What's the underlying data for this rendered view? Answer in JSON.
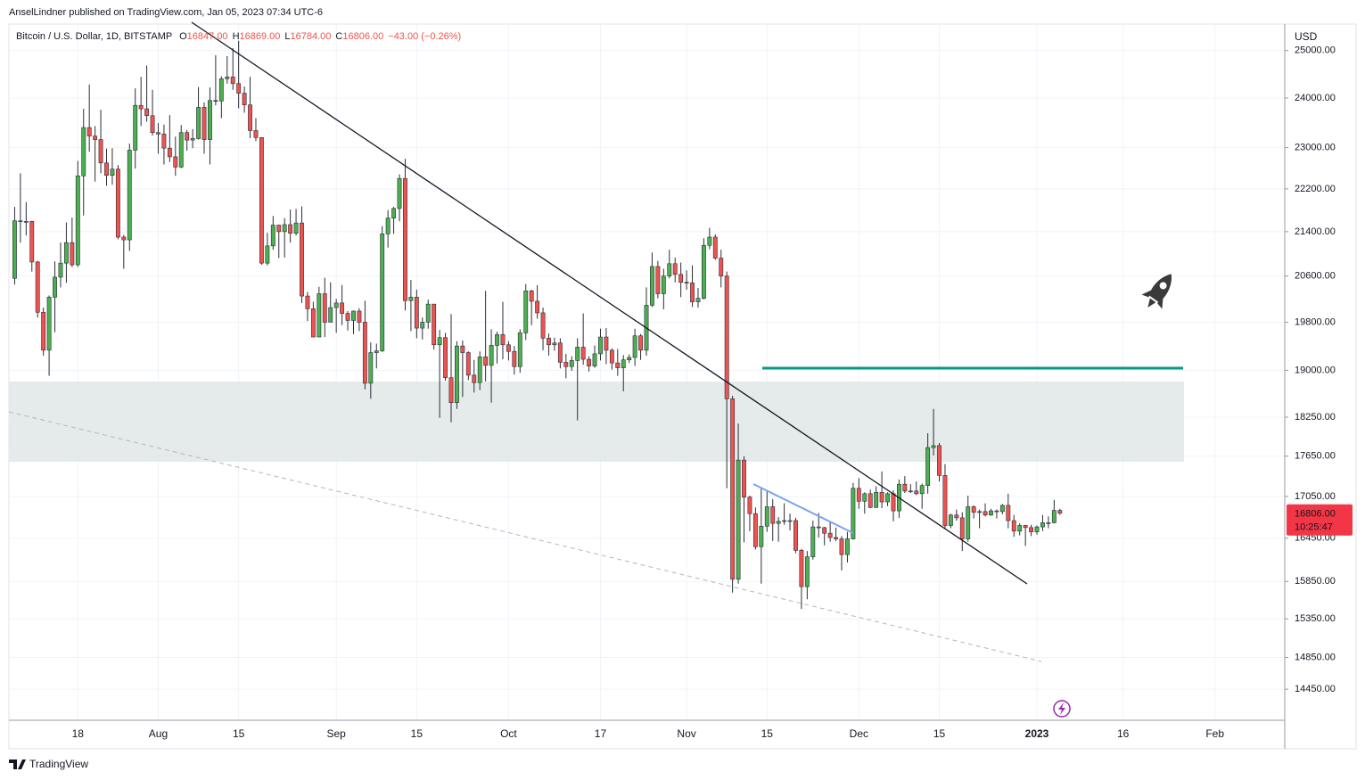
{
  "header": {
    "publisher": "AnselLindner published on TradingView.com, Jan 05, 2023 07:34 UTC-6"
  },
  "chart_data": {
    "type": "candlestick",
    "legend": {
      "symbol": "Bitcoin / U.S. Dollar, 1D, BITSTAMP",
      "fields": [
        {
          "key": "O",
          "value": "16847.00"
        },
        {
          "key": "H",
          "value": "16869.00"
        },
        {
          "key": "L",
          "value": "16784.00"
        },
        {
          "key": "C",
          "value": "16806.00"
        }
      ],
      "change": "−43.00 (−0.26%)"
    },
    "currency": "USD",
    "last_price": {
      "value": 16806,
      "label": "16806.00"
    },
    "countdown": "10:25:47",
    "up_color": "#4caf50",
    "down_color": "#ef5350",
    "last_price_color": "#f23645",
    "log_scale": true,
    "grid": true,
    "xlim": [
      "Jul 6",
      "Feb 13"
    ],
    "xticks": [
      {
        "value": "Jul 18",
        "label": "18"
      },
      {
        "value": "Aug 1",
        "label": "Aug"
      },
      {
        "value": "Aug 15",
        "label": "15"
      },
      {
        "value": "Sep 1",
        "label": "Sep"
      },
      {
        "value": "Sep 15",
        "label": "15"
      },
      {
        "value": "Oct 1",
        "label": "Oct"
      },
      {
        "value": "Oct 17",
        "label": "17"
      },
      {
        "value": "Nov 1",
        "label": "Nov"
      },
      {
        "value": "Nov 15",
        "label": "15"
      },
      {
        "value": "Dec 1",
        "label": "Dec"
      },
      {
        "value": "Dec 15",
        "label": "15"
      },
      {
        "value": "Jan 1",
        "label": "2023"
      },
      {
        "value": "Jan 16",
        "label": "16"
      },
      {
        "value": "Feb 1",
        "label": "Feb"
      }
    ],
    "ylim": [
      14070,
      25515
    ],
    "yticks": [
      {
        "value": 25000,
        "label": "25000.00"
      },
      {
        "value": 24000,
        "label": "24000.00"
      },
      {
        "value": 23000,
        "label": "23000.00"
      },
      {
        "value": 22200,
        "label": "22200.00"
      },
      {
        "value": 21400,
        "label": "21400.00"
      },
      {
        "value": 20600,
        "label": "20600.00"
      },
      {
        "value": 19800,
        "label": "19800.00"
      },
      {
        "value": 19000,
        "label": "19000.00"
      },
      {
        "value": 18250,
        "label": "18250.00"
      },
      {
        "value": 17650,
        "label": "17650.00"
      },
      {
        "value": 17050,
        "label": "17050.00"
      },
      {
        "value": 16450,
        "label": "16450.00"
      },
      {
        "value": 15850,
        "label": "15850.00"
      },
      {
        "value": 15350,
        "label": "15350.00"
      },
      {
        "value": 14850,
        "label": "14850.00"
      },
      {
        "value": 14450,
        "label": "14450.00"
      }
    ],
    "x": [
      "Jul 7",
      "Jul 8",
      "Jul 9",
      "Jul 10",
      "Jul 11",
      "Jul 12",
      "Jul 13",
      "Jul 14",
      "Jul 15",
      "Jul 16",
      "Jul 17",
      "Jul 18",
      "Jul 19",
      "Jul 20",
      "Jul 21",
      "Jul 22",
      "Jul 23",
      "Jul 24",
      "Jul 25",
      "Jul 26",
      "Jul 27",
      "Jul 28",
      "Jul 29",
      "Jul 30",
      "Jul 31",
      "Aug 1",
      "Aug 2",
      "Aug 3",
      "Aug 4",
      "Aug 5",
      "Aug 6",
      "Aug 7",
      "Aug 8",
      "Aug 9",
      "Aug 10",
      "Aug 11",
      "Aug 12",
      "Aug 13",
      "Aug 14",
      "Aug 15",
      "Aug 16",
      "Aug 17",
      "Aug 18",
      "Aug 19",
      "Aug 20",
      "Aug 21",
      "Aug 22",
      "Aug 23",
      "Aug 24",
      "Aug 25",
      "Aug 26",
      "Aug 27",
      "Aug 28",
      "Aug 29",
      "Aug 30",
      "Aug 31",
      "Sep 1",
      "Sep 2",
      "Sep 3",
      "Sep 4",
      "Sep 5",
      "Sep 6",
      "Sep 7",
      "Sep 8",
      "Sep 9",
      "Sep 10",
      "Sep 11",
      "Sep 12",
      "Sep 13",
      "Sep 14",
      "Sep 15",
      "Sep 16",
      "Sep 17",
      "Sep 18",
      "Sep 19",
      "Sep 20",
      "Sep 21",
      "Sep 22",
      "Sep 23",
      "Sep 24",
      "Sep 25",
      "Sep 26",
      "Sep 27",
      "Sep 28",
      "Sep 29",
      "Sep 30",
      "Oct 1",
      "Oct 2",
      "Oct 3",
      "Oct 4",
      "Oct 5",
      "Oct 6",
      "Oct 7",
      "Oct 8",
      "Oct 9",
      "Oct 10",
      "Oct 11",
      "Oct 12",
      "Oct 13",
      "Oct 14",
      "Oct 15",
      "Oct 16",
      "Oct 17",
      "Oct 18",
      "Oct 19",
      "Oct 20",
      "Oct 21",
      "Oct 22",
      "Oct 23",
      "Oct 24",
      "Oct 25",
      "Oct 26",
      "Oct 27",
      "Oct 28",
      "Oct 29",
      "Oct 30",
      "Oct 31",
      "Nov 1",
      "Nov 2",
      "Nov 3",
      "Nov 4",
      "Nov 5",
      "Nov 6",
      "Nov 7",
      "Nov 8",
      "Nov 9",
      "Nov 10",
      "Nov 11",
      "Nov 12",
      "Nov 13",
      "Nov 14",
      "Nov 15",
      "Nov 16",
      "Nov 17",
      "Nov 18",
      "Nov 19",
      "Nov 20",
      "Nov 21",
      "Nov 22",
      "Nov 23",
      "Nov 24",
      "Nov 25",
      "Nov 26",
      "Nov 27",
      "Nov 28",
      "Nov 29",
      "Nov 30",
      "Dec 1",
      "Dec 2",
      "Dec 3",
      "Dec 4",
      "Dec 5",
      "Dec 6",
      "Dec 7",
      "Dec 8",
      "Dec 9",
      "Dec 10",
      "Dec 11",
      "Dec 12",
      "Dec 13",
      "Dec 14",
      "Dec 15",
      "Dec 16",
      "Dec 17",
      "Dec 18",
      "Dec 19",
      "Dec 20",
      "Dec 21",
      "Dec 22",
      "Dec 23",
      "Dec 24",
      "Dec 25",
      "Dec 26",
      "Dec 27",
      "Dec 28",
      "Dec 29",
      "Dec 30",
      "Dec 31",
      "Jan 1",
      "Jan 2",
      "Jan 3",
      "Jan 4",
      "Jan 5"
    ],
    "ohlc": [
      [
        20560,
        21860,
        20450,
        21600
      ],
      [
        21600,
        22500,
        21200,
        21590
      ],
      [
        21590,
        21950,
        21330,
        21590
      ],
      [
        21590,
        21600,
        20680,
        20850
      ],
      [
        20850,
        20870,
        19880,
        19970
      ],
      [
        19970,
        20050,
        19240,
        19330
      ],
      [
        19330,
        20260,
        18910,
        20230
      ],
      [
        20230,
        20860,
        19630,
        20580
      ],
      [
        20580,
        21200,
        20400,
        20830
      ],
      [
        20830,
        21570,
        20480,
        21200
      ],
      [
        21200,
        21660,
        20760,
        20800
      ],
      [
        20800,
        22740,
        20760,
        22450
      ],
      [
        22450,
        23780,
        21700,
        23400
      ],
      [
        23400,
        24280,
        22920,
        23230
      ],
      [
        23230,
        23430,
        22340,
        23160
      ],
      [
        23160,
        23760,
        22500,
        22700
      ],
      [
        22700,
        22980,
        22260,
        22460
      ],
      [
        22460,
        22990,
        22280,
        22580
      ],
      [
        22580,
        22660,
        21260,
        21300
      ],
      [
        21300,
        21340,
        20730,
        21250
      ],
      [
        21250,
        23080,
        21050,
        22950
      ],
      [
        22950,
        24200,
        22590,
        23850
      ],
      [
        23850,
        24440,
        23430,
        23780
      ],
      [
        23780,
        24680,
        23520,
        23640
      ],
      [
        23640,
        24170,
        23240,
        23300
      ],
      [
        23300,
        23490,
        22880,
        23270
      ],
      [
        23270,
        23460,
        22670,
        22990
      ],
      [
        22990,
        23650,
        22720,
        22820
      ],
      [
        22820,
        23220,
        22450,
        22620
      ],
      [
        22620,
        23450,
        22600,
        23300
      ],
      [
        23300,
        23350,
        22940,
        23150
      ],
      [
        23150,
        23370,
        22990,
        23180
      ],
      [
        23180,
        24230,
        23160,
        23810
      ],
      [
        23810,
        23910,
        22880,
        23160
      ],
      [
        23160,
        24220,
        22670,
        23950
      ],
      [
        23950,
        24900,
        23850,
        23940
      ],
      [
        23940,
        24450,
        23590,
        24400
      ],
      [
        24400,
        24880,
        24300,
        24440
      ],
      [
        24440,
        25050,
        24170,
        24300
      ],
      [
        24300,
        25210,
        23790,
        24100
      ],
      [
        24100,
        24240,
        23700,
        23860
      ],
      [
        23860,
        24440,
        23190,
        23340
      ],
      [
        23340,
        23590,
        23130,
        23200
      ],
      [
        23200,
        23210,
        20800,
        20830
      ],
      [
        20830,
        21380,
        20790,
        21140
      ],
      [
        21140,
        21690,
        21070,
        21520
      ],
      [
        21520,
        21530,
        20920,
        21400
      ],
      [
        21400,
        21650,
        20930,
        21530
      ],
      [
        21530,
        21810,
        21200,
        21370
      ],
      [
        21370,
        21820,
        21330,
        21560
      ],
      [
        21560,
        21870,
        20130,
        20250
      ],
      [
        20250,
        20320,
        19820,
        20030
      ],
      [
        20030,
        20150,
        19550,
        19550
      ],
      [
        19550,
        20410,
        19550,
        20290
      ],
      [
        20290,
        20570,
        19550,
        19800
      ],
      [
        19800,
        20490,
        19800,
        20050
      ],
      [
        20050,
        20200,
        19620,
        20130
      ],
      [
        20130,
        20440,
        19750,
        19950
      ],
      [
        19950,
        19990,
        19660,
        19830
      ],
      [
        19830,
        20000,
        19600,
        19990
      ],
      [
        19990,
        20040,
        19650,
        19800
      ],
      [
        19800,
        20170,
        18690,
        18790
      ],
      [
        18790,
        19460,
        18540,
        19290
      ],
      [
        19290,
        19440,
        19030,
        19320
      ],
      [
        19320,
        21500,
        19300,
        21360
      ],
      [
        21360,
        21800,
        21110,
        21650
      ],
      [
        21650,
        21860,
        21360,
        21830
      ],
      [
        21830,
        22480,
        21590,
        22400
      ],
      [
        22400,
        22780,
        20000,
        20170
      ],
      [
        20170,
        20530,
        19650,
        20230
      ],
      [
        20230,
        20360,
        19530,
        19700
      ],
      [
        19700,
        19880,
        19510,
        19800
      ],
      [
        19800,
        20190,
        19690,
        20110
      ],
      [
        20110,
        20110,
        19340,
        19420
      ],
      [
        19420,
        19670,
        18240,
        19540
      ],
      [
        19540,
        19620,
        18830,
        18880
      ],
      [
        18880,
        19940,
        18170,
        18480
      ],
      [
        18480,
        19480,
        18380,
        19400
      ],
      [
        19400,
        19490,
        18570,
        19290
      ],
      [
        19290,
        19310,
        18840,
        18920
      ],
      [
        18920,
        19170,
        18640,
        18800
      ],
      [
        18800,
        19310,
        18680,
        19220
      ],
      [
        19220,
        20340,
        18820,
        19080
      ],
      [
        19080,
        19680,
        18480,
        19410
      ],
      [
        19410,
        19640,
        19110,
        19590
      ],
      [
        19590,
        20150,
        19180,
        19420
      ],
      [
        19420,
        19480,
        19160,
        19310
      ],
      [
        19310,
        19400,
        18930,
        19060
      ],
      [
        19060,
        19680,
        18960,
        19620
      ],
      [
        19620,
        20460,
        19500,
        20340
      ],
      [
        20340,
        20360,
        19750,
        20160
      ],
      [
        20160,
        20440,
        19860,
        19960
      ],
      [
        19960,
        20050,
        19330,
        19530
      ],
      [
        19530,
        19610,
        19240,
        19420
      ],
      [
        19420,
        19540,
        19320,
        19450
      ],
      [
        19450,
        19530,
        19030,
        19130
      ],
      [
        19130,
        19270,
        18870,
        19060
      ],
      [
        19060,
        19230,
        18990,
        19160
      ],
      [
        19160,
        19530,
        18200,
        19380
      ],
      [
        19380,
        19950,
        19090,
        19180
      ],
      [
        19180,
        19230,
        18980,
        19070
      ],
      [
        19070,
        19410,
        19040,
        19270
      ],
      [
        19270,
        19690,
        19160,
        19550
      ],
      [
        19550,
        19700,
        19100,
        19330
      ],
      [
        19330,
        19360,
        19010,
        19120
      ],
      [
        19120,
        19350,
        18910,
        19040
      ],
      [
        19040,
        19250,
        18660,
        19170
      ],
      [
        19170,
        19260,
        19120,
        19210
      ],
      [
        19210,
        19690,
        19070,
        19570
      ],
      [
        19570,
        19600,
        19170,
        19330
      ],
      [
        19330,
        20400,
        19240,
        20090
      ],
      [
        20090,
        21020,
        20060,
        20770
      ],
      [
        20770,
        20870,
        20210,
        20290
      ],
      [
        20290,
        20730,
        20020,
        20600
      ],
      [
        20600,
        21070,
        20560,
        20820
      ],
      [
        20820,
        20930,
        20490,
        20630
      ],
      [
        20630,
        20840,
        20230,
        20490
      ],
      [
        20490,
        20700,
        20360,
        20480
      ],
      [
        20480,
        20790,
        20060,
        20150
      ],
      [
        20150,
        20390,
        20050,
        20210
      ],
      [
        20210,
        21280,
        20190,
        21150
      ],
      [
        21150,
        21470,
        21080,
        21300
      ],
      [
        21300,
        21350,
        20890,
        20920
      ],
      [
        20920,
        21070,
        20400,
        20600
      ],
      [
        20600,
        20680,
        17170,
        18540
      ],
      [
        18540,
        18590,
        15700,
        15880
      ],
      [
        15880,
        18150,
        15820,
        17590
      ],
      [
        17590,
        17650,
        16390,
        17040
      ],
      [
        17040,
        17060,
        16550,
        16800
      ],
      [
        16800,
        16890,
        16290,
        16330
      ],
      [
        16330,
        17180,
        15820,
        16620
      ],
      [
        16620,
        17120,
        16540,
        16900
      ],
      [
        16900,
        17010,
        16410,
        16660
      ],
      [
        16660,
        16750,
        16400,
        16690
      ],
      [
        16690,
        16950,
        16640,
        16700
      ],
      [
        16700,
        16800,
        16560,
        16700
      ],
      [
        16700,
        16740,
        16240,
        16280
      ],
      [
        16280,
        16300,
        15480,
        15780
      ],
      [
        15780,
        16270,
        15610,
        16190
      ],
      [
        16190,
        16700,
        16150,
        16610
      ],
      [
        16610,
        16810,
        16460,
        16600
      ],
      [
        16600,
        16610,
        16350,
        16520
      ],
      [
        16520,
        16690,
        16400,
        16460
      ],
      [
        16460,
        16600,
        16410,
        16440
      ],
      [
        16440,
        16480,
        16000,
        16220
      ],
      [
        16220,
        16540,
        16110,
        16440
      ],
      [
        16440,
        17250,
        16430,
        17170
      ],
      [
        17170,
        17320,
        16870,
        16980
      ],
      [
        16980,
        17110,
        16800,
        17090
      ],
      [
        17090,
        17150,
        16880,
        16890
      ],
      [
        16890,
        17200,
        16880,
        17110
      ],
      [
        17110,
        17420,
        16880,
        16970
      ],
      [
        16970,
        17110,
        16910,
        17090
      ],
      [
        17090,
        17140,
        16690,
        16840
      ],
      [
        16840,
        17300,
        16740,
        17230
      ],
      [
        17230,
        17350,
        17100,
        17130
      ],
      [
        17130,
        17230,
        17100,
        17130
      ],
      [
        17130,
        17270,
        17070,
        17090
      ],
      [
        17090,
        17240,
        16870,
        17210
      ],
      [
        17210,
        18000,
        17090,
        17780
      ],
      [
        17780,
        18380,
        17660,
        17810
      ],
      [
        17810,
        17850,
        17270,
        17360
      ],
      [
        17360,
        17530,
        16580,
        16630
      ],
      [
        16630,
        16800,
        16590,
        16780
      ],
      [
        16780,
        16860,
        16700,
        16740
      ],
      [
        16740,
        16820,
        16270,
        16440
      ],
      [
        16440,
        17060,
        16400,
        16900
      ],
      [
        16900,
        16920,
        16730,
        16820
      ],
      [
        16820,
        16860,
        16590,
        16830
      ],
      [
        16830,
        16950,
        16760,
        16780
      ],
      [
        16780,
        16870,
        16770,
        16840
      ],
      [
        16840,
        16860,
        16730,
        16830
      ],
      [
        16830,
        16940,
        16790,
        16920
      ],
      [
        16920,
        17090,
        16590,
        16700
      ],
      [
        16700,
        16780,
        16470,
        16550
      ],
      [
        16550,
        16660,
        16490,
        16630
      ],
      [
        16630,
        16640,
        16340,
        16600
      ],
      [
        16600,
        16640,
        16480,
        16540
      ],
      [
        16540,
        16630,
        16500,
        16610
      ],
      [
        16610,
        16780,
        16550,
        16670
      ],
      [
        16670,
        16760,
        16590,
        16670
      ],
      [
        16670,
        17000,
        16660,
        16847
      ],
      [
        16847,
        16869,
        16784,
        16806
      ]
    ]
  },
  "footer": {
    "brand": "TradingView"
  }
}
